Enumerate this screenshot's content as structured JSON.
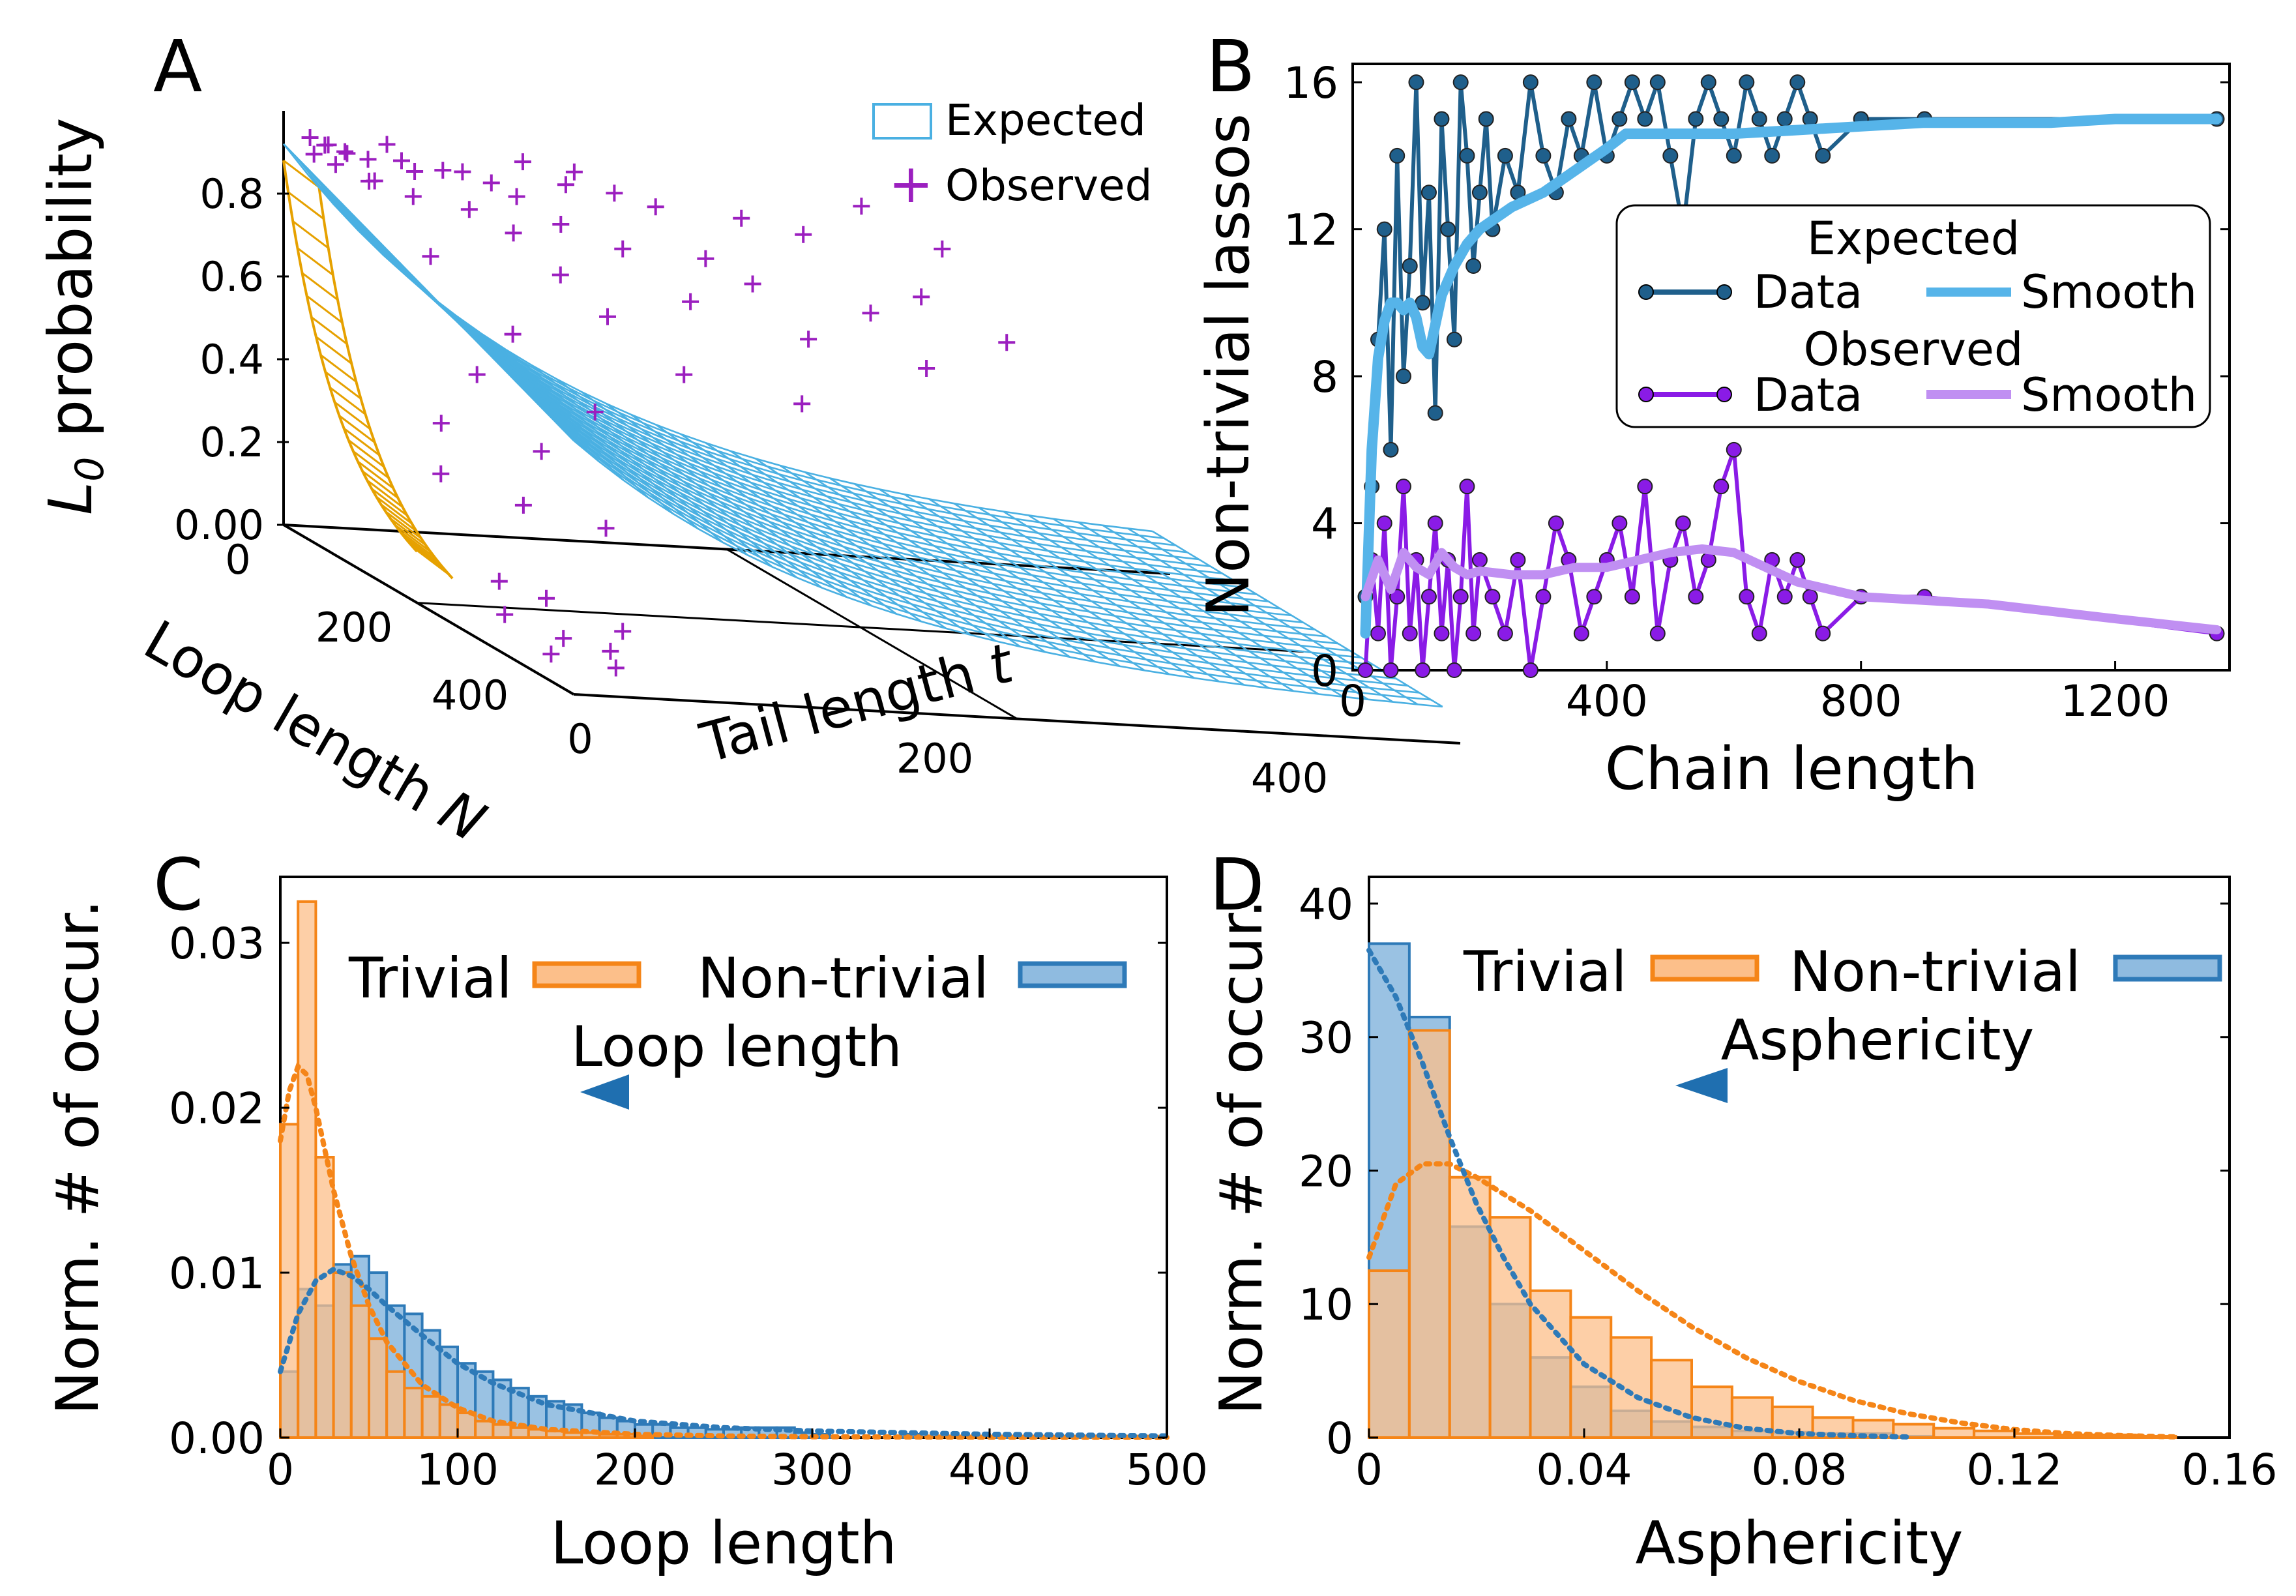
{
  "colors": {
    "expected_data": "#1f5f8b",
    "expected_smooth": "#56b4e9",
    "observed_data": "#8a1be6",
    "observed_smooth": "#c08ff2",
    "trivial": "#f58518",
    "trivial_fill": "#fcbf8a",
    "nontrivial": "#2e7ab8",
    "nontrivial_fill": "#8fbbe0",
    "mesh_blue": "#4ab0e2",
    "mesh_orange": "#e6a100",
    "observed_marker": "#9b1fbf"
  },
  "chart_data": [
    {
      "id": "A",
      "type": "surface3d",
      "panel_label": "A",
      "zlabel_main": "L",
      "zlabel_sub": "0",
      "zlabel_rest": " probability",
      "xlabel": "Loop length ",
      "xlabel_sym": "N",
      "ylabel": "Tail length ",
      "ylabel_sym": "t",
      "z_ticks": [
        "0.00",
        "0.2",
        "0.4",
        "0.6",
        "0.8"
      ],
      "z_tick_values": [
        0.0,
        0.2,
        0.4,
        0.6,
        0.8
      ],
      "n_ticks": [
        "0",
        "200",
        "400"
      ],
      "t_ticks": [
        "0",
        "200",
        "400"
      ],
      "n_range": [
        0,
        500
      ],
      "t_range": [
        0,
        500
      ],
      "z_range": [
        0,
        1
      ],
      "legend": [
        {
          "label": "Expected",
          "kind": "surface"
        },
        {
          "label": "Observed",
          "kind": "plus"
        }
      ],
      "observed_points": [
        [
          10,
          20,
          0.93
        ],
        [
          14,
          30,
          0.92
        ],
        [
          8,
          45,
          0.9
        ],
        [
          20,
          60,
          0.91
        ],
        [
          12,
          70,
          0.88
        ],
        [
          25,
          40,
          0.86
        ],
        [
          30,
          80,
          0.9
        ],
        [
          18,
          95,
          0.89
        ],
        [
          22,
          110,
          0.87
        ],
        [
          35,
          120,
          0.85
        ],
        [
          40,
          60,
          0.84
        ],
        [
          15,
          130,
          0.92
        ],
        [
          28,
          150,
          0.88
        ],
        [
          45,
          90,
          0.82
        ],
        [
          50,
          140,
          0.8
        ],
        [
          12,
          160,
          0.9
        ],
        [
          20,
          180,
          0.86
        ],
        [
          60,
          110,
          0.78
        ],
        [
          65,
          170,
          0.76
        ],
        [
          30,
          200,
          0.84
        ],
        [
          55,
          220,
          0.74
        ],
        [
          70,
          60,
          0.72
        ],
        [
          80,
          130,
          0.7
        ],
        [
          90,
          200,
          0.66
        ],
        [
          75,
          240,
          0.7
        ],
        [
          100,
          150,
          0.62
        ],
        [
          110,
          260,
          0.6
        ],
        [
          120,
          90,
          0.58
        ],
        [
          95,
          300,
          0.66
        ],
        [
          130,
          320,
          0.56
        ],
        [
          25,
          250,
          0.82
        ],
        [
          40,
          280,
          0.8
        ],
        [
          18,
          320,
          0.86
        ],
        [
          35,
          360,
          0.78
        ],
        [
          60,
          340,
          0.68
        ],
        [
          85,
          380,
          0.6
        ],
        [
          140,
          180,
          0.52
        ],
        [
          150,
          60,
          0.5
        ],
        [
          160,
          240,
          0.48
        ],
        [
          170,
          120,
          0.44
        ],
        [
          180,
          30,
          0.4
        ],
        [
          200,
          80,
          0.36
        ],
        [
          210,
          20,
          0.3
        ],
        [
          230,
          60,
          0.25
        ],
        [
          250,
          100,
          0.22
        ],
        [
          280,
          30,
          0.1
        ],
        [
          300,
          50,
          0.08
        ],
        [
          320,
          20,
          0.05
        ],
        [
          340,
          80,
          0.04
        ],
        [
          360,
          40,
          0.03
        ],
        [
          380,
          60,
          0.02
        ],
        [
          400,
          20,
          0.02
        ],
        [
          420,
          50,
          0.01
        ],
        [
          15,
          10,
          0.95
        ],
        [
          22,
          18,
          0.94
        ],
        [
          33,
          25,
          0.93
        ],
        [
          44,
          15,
          0.91
        ],
        [
          50,
          35,
          0.88
        ],
        [
          10,
          55,
          0.94
        ],
        [
          28,
          8,
          0.92
        ]
      ]
    },
    {
      "id": "B",
      "type": "line",
      "panel_label": "B",
      "xlabel": "Chain length",
      "ylabel": "Non-trivial lassos",
      "xlim": [
        0,
        1380
      ],
      "ylim": [
        0,
        16.5
      ],
      "x_ticks": [
        0,
        400,
        800,
        1200
      ],
      "y_ticks": [
        0,
        4,
        8,
        12,
        16
      ],
      "legend_title_1": "Expected",
      "legend_title_2": "Observed",
      "legend_data_label": "Data",
      "legend_smooth_label": "Smooth",
      "series": [
        {
          "name": "Expected Data",
          "x": [
            20,
            30,
            40,
            50,
            60,
            70,
            80,
            90,
            100,
            110,
            120,
            130,
            140,
            150,
            160,
            170,
            180,
            190,
            200,
            210,
            220,
            240,
            260,
            280,
            300,
            320,
            340,
            360,
            380,
            400,
            420,
            440,
            460,
            480,
            500,
            520,
            540,
            560,
            580,
            600,
            620,
            640,
            660,
            680,
            700,
            720,
            740,
            800,
            900,
            1360
          ],
          "y": [
            2,
            5,
            9,
            12,
            6,
            14,
            8,
            11,
            16,
            10,
            13,
            7,
            15,
            12,
            9,
            16,
            14,
            11,
            13,
            15,
            12,
            14,
            13,
            16,
            14,
            13,
            15,
            14,
            16,
            14,
            15,
            16,
            15,
            16,
            14,
            12,
            15,
            16,
            15,
            14,
            16,
            15,
            14,
            15,
            16,
            15,
            14,
            15,
            15,
            15
          ]
        },
        {
          "name": "Expected Smooth",
          "x": [
            20,
            30,
            40,
            50,
            60,
            70,
            80,
            90,
            100,
            110,
            120,
            130,
            140,
            160,
            180,
            200,
            250,
            300,
            350,
            400,
            430,
            450,
            500,
            600,
            700,
            800,
            900,
            1000,
            1100,
            1200,
            1360
          ],
          "y": [
            1,
            6,
            8.5,
            9.5,
            10,
            10,
            9.8,
            10,
            9.6,
            8.8,
            8.6,
            9.4,
            10.2,
            11,
            11.6,
            12,
            12.6,
            13,
            13.6,
            14.2,
            14.6,
            14.6,
            14.6,
            14.6,
            14.7,
            14.8,
            14.9,
            14.9,
            14.9,
            15,
            15
          ]
        },
        {
          "name": "Observed Data",
          "x": [
            20,
            30,
            40,
            50,
            60,
            70,
            80,
            90,
            100,
            110,
            120,
            130,
            140,
            150,
            160,
            170,
            180,
            190,
            200,
            220,
            240,
            260,
            280,
            300,
            320,
            340,
            360,
            380,
            400,
            420,
            440,
            460,
            480,
            500,
            520,
            540,
            560,
            580,
            600,
            620,
            640,
            660,
            680,
            700,
            720,
            740,
            800,
            900,
            1360
          ],
          "y": [
            0,
            3,
            1,
            4,
            0,
            2,
            5,
            1,
            3,
            0,
            2,
            4,
            1,
            3,
            0,
            2,
            5,
            1,
            3,
            2,
            1,
            3,
            0,
            2,
            4,
            3,
            1,
            2,
            3,
            4,
            2,
            5,
            1,
            3,
            4,
            2,
            3,
            5,
            6,
            2,
            1,
            3,
            2,
            3,
            2,
            1,
            2,
            2,
            1
          ]
        },
        {
          "name": "Observed Smooth",
          "x": [
            20,
            40,
            60,
            80,
            100,
            120,
            140,
            160,
            180,
            200,
            250,
            300,
            350,
            400,
            450,
            500,
            550,
            600,
            650,
            700,
            800,
            900,
            1000,
            1100,
            1200,
            1360
          ],
          "y": [
            2,
            3,
            2.2,
            3.2,
            2.8,
            2.6,
            3.2,
            2.8,
            2.6,
            2.7,
            2.6,
            2.6,
            2.8,
            2.8,
            3,
            3.2,
            3.3,
            3.2,
            2.8,
            2.4,
            2,
            1.9,
            1.8,
            1.6,
            1.4,
            1.1
          ]
        }
      ]
    },
    {
      "id": "C",
      "type": "histogram",
      "panel_label": "C",
      "xlabel": "Loop length",
      "ylabel": "Norm. # of occur.",
      "xlim": [
        0,
        500
      ],
      "ylim": [
        0,
        0.034
      ],
      "x_ticks": [
        "0",
        "100",
        "200",
        "300",
        "400",
        "500"
      ],
      "x_tick_values": [
        0,
        100,
        200,
        300,
        400,
        500
      ],
      "y_ticks": [
        "0.00",
        "0.01",
        "0.02",
        "0.03"
      ],
      "y_tick_values": [
        0,
        0.01,
        0.02,
        0.03
      ],
      "bin_width": 10,
      "legend": [
        "Trivial",
        "Non-trivial"
      ],
      "arrow_label": "Loop length",
      "series": [
        {
          "name": "Trivial",
          "bin_starts": [
            0,
            10,
            20,
            30,
            40,
            50,
            60,
            70,
            80,
            90,
            100,
            110,
            120,
            130,
            140,
            150,
            160,
            170,
            180,
            190,
            200
          ],
          "values": [
            0.019,
            0.0325,
            0.017,
            0.01,
            0.008,
            0.006,
            0.004,
            0.003,
            0.0025,
            0.002,
            0.0015,
            0.001,
            0.0008,
            0.0006,
            0.0005,
            0.0004,
            0.0003,
            0.0003,
            0.0002,
            0.0002,
            0.0001
          ]
        },
        {
          "name": "Non-trivial",
          "bin_starts": [
            0,
            10,
            20,
            30,
            40,
            50,
            60,
            70,
            80,
            90,
            100,
            110,
            120,
            130,
            140,
            150,
            160,
            170,
            180,
            190,
            200,
            210,
            220,
            230,
            240,
            250,
            260,
            270,
            280,
            290,
            300,
            350,
            400,
            450
          ],
          "values": [
            0.004,
            0.009,
            0.008,
            0.0105,
            0.011,
            0.01,
            0.008,
            0.0075,
            0.0065,
            0.0055,
            0.0045,
            0.004,
            0.0035,
            0.003,
            0.0025,
            0.0022,
            0.002,
            0.0015,
            0.0012,
            0.001,
            0.0008,
            0.0008,
            0.0006,
            0.0006,
            0.0005,
            0.0005,
            0.0006,
            0.0006,
            0.0006,
            0.0003,
            0.0002,
            0.0002,
            0.0001,
            0.0001
          ]
        }
      ],
      "fits": [
        {
          "name": "Trivial fit",
          "x": [
            0,
            5,
            10,
            15,
            20,
            25,
            30,
            40,
            50,
            60,
            80,
            100,
            120,
            150,
            200,
            250,
            300,
            400,
            500
          ],
          "y": [
            0.018,
            0.021,
            0.0225,
            0.022,
            0.02,
            0.0175,
            0.015,
            0.011,
            0.008,
            0.0058,
            0.0032,
            0.0018,
            0.001,
            0.0005,
            0.0002,
            0.0001,
            5e-05,
            2e-05,
            1e-05
          ]
        },
        {
          "name": "Non-trivial fit",
          "x": [
            0,
            10,
            20,
            30,
            40,
            50,
            60,
            80,
            100,
            120,
            150,
            200,
            250,
            300,
            400,
            500
          ],
          "y": [
            0.004,
            0.0075,
            0.0095,
            0.0102,
            0.0098,
            0.009,
            0.008,
            0.0062,
            0.0045,
            0.0033,
            0.002,
            0.001,
            0.0006,
            0.0004,
            0.0002,
            0.0001
          ]
        }
      ]
    },
    {
      "id": "D",
      "type": "histogram",
      "panel_label": "D",
      "xlabel": "Asphericity",
      "ylabel": "Norm. # of occur.",
      "xlim": [
        0,
        0.16
      ],
      "ylim": [
        0,
        42
      ],
      "x_ticks": [
        "0",
        "0.04",
        "0.08",
        "0.12",
        "0.16"
      ],
      "x_tick_values": [
        0,
        0.04,
        0.08,
        0.12,
        0.16
      ],
      "y_ticks": [
        "0",
        "10",
        "20",
        "30",
        "40"
      ],
      "y_tick_values": [
        0,
        10,
        20,
        30,
        40
      ],
      "bin_width": 0.0075,
      "legend": [
        "Trivial",
        "Non-trivial"
      ],
      "arrow_label": "Asphericity",
      "series": [
        {
          "name": "Trivial",
          "bin_starts": [
            0,
            0.0075,
            0.015,
            0.0225,
            0.03,
            0.0375,
            0.045,
            0.0525,
            0.06,
            0.0675,
            0.075,
            0.0825,
            0.09,
            0.0975,
            0.105,
            0.1125,
            0.12,
            0.1275,
            0.135,
            0.1425
          ],
          "values": [
            12.5,
            30.5,
            19.5,
            16.5,
            11,
            9,
            7.5,
            5.8,
            3.8,
            3,
            2.3,
            1.5,
            1.3,
            1,
            0.7,
            0.5,
            0.3,
            0.2,
            0.2,
            0.1
          ]
        },
        {
          "name": "Non-trivial",
          "bin_starts": [
            0,
            0.0075,
            0.015,
            0.0225,
            0.03,
            0.0375,
            0.045,
            0.0525,
            0.06,
            0.0675,
            0.075,
            0.0825,
            0.09,
            0.0975
          ],
          "values": [
            37,
            31.5,
            15.8,
            10,
            6,
            3.8,
            2,
            1.2,
            0.8,
            0.5,
            0.4,
            0.3,
            0.3,
            0.1
          ]
        }
      ],
      "fits": [
        {
          "name": "Trivial fit",
          "x": [
            0,
            0.005,
            0.01,
            0.015,
            0.02,
            0.03,
            0.04,
            0.05,
            0.06,
            0.07,
            0.08,
            0.09,
            0.1,
            0.11,
            0.12,
            0.13,
            0.14,
            0.15
          ],
          "y": [
            13.5,
            19,
            20.5,
            20.5,
            19.5,
            17,
            14,
            11,
            8.3,
            6,
            4.2,
            2.8,
            1.8,
            1.1,
            0.6,
            0.3,
            0.15,
            0.05
          ]
        },
        {
          "name": "Non-trivial fit",
          "x": [
            0,
            0.005,
            0.01,
            0.015,
            0.02,
            0.025,
            0.03,
            0.04,
            0.05,
            0.06,
            0.07,
            0.08,
            0.09,
            0.1
          ],
          "y": [
            36.5,
            33,
            28,
            22.5,
            17.5,
            13.5,
            10,
            5.5,
            3,
            1.5,
            0.7,
            0.3,
            0.15,
            0.05
          ]
        }
      ]
    }
  ]
}
